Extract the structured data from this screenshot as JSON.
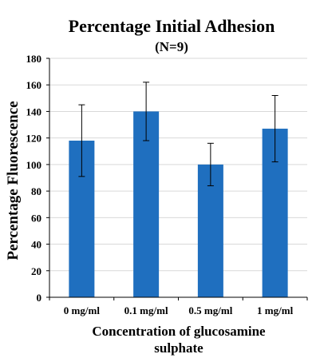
{
  "chart_data": {
    "type": "bar",
    "title": "Percentage Initial Adhesion",
    "subtitle": "(N=9)",
    "xlabel_lines": [
      "Concentration  of glucosamine",
      "sulphate"
    ],
    "ylabel": "Percentage Fluorescence",
    "categories": [
      "0 mg/ml",
      "0.1 mg/ml",
      "0.5 mg/ml",
      "1 mg/ml"
    ],
    "values": [
      118,
      140,
      100,
      127
    ],
    "errors": [
      27,
      22,
      16,
      25
    ],
    "ylim": [
      0,
      180
    ],
    "yticks": [
      0,
      20,
      40,
      60,
      80,
      100,
      120,
      140,
      160,
      180
    ],
    "grid": true,
    "legend": "none",
    "colors": {
      "bar": "#1f6fbf",
      "grid": "#d9d9d9",
      "axis": "#000000",
      "error": "#000000"
    }
  }
}
